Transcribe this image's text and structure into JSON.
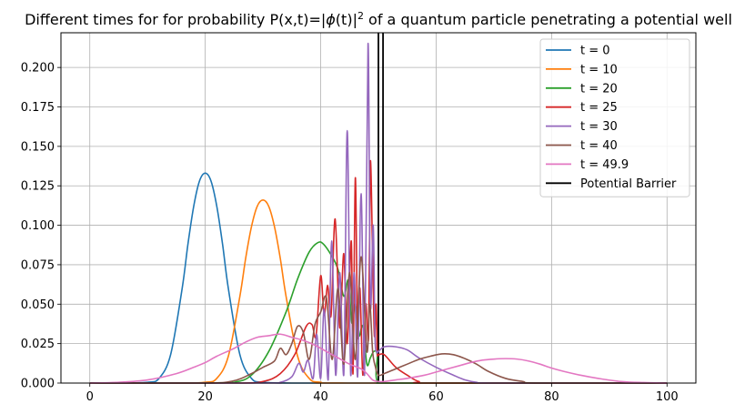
{
  "chart_data": {
    "type": "line",
    "title": {
      "prefix": "Different times for for probability P(x,t)=|",
      "phi": "ϕ",
      "arg": "(t)",
      "close": "|",
      "sup": "2",
      "suffix": " of a quantum particle penetrating a potential well"
    },
    "xlabel": "",
    "ylabel": "",
    "xlim": [
      -5,
      105
    ],
    "ylim": [
      0,
      0.222
    ],
    "x_ticks": [
      0,
      20,
      40,
      60,
      80,
      100
    ],
    "y_ticks": [
      0.0,
      0.025,
      0.05,
      0.075,
      0.1,
      0.125,
      0.15,
      0.175,
      0.2
    ],
    "x_tick_labels": [
      "0",
      "20",
      "40",
      "60",
      "80",
      "100"
    ],
    "y_tick_labels": [
      "0.000",
      "0.025",
      "0.050",
      "0.075",
      "0.100",
      "0.125",
      "0.150",
      "0.175",
      "0.200"
    ],
    "grid": true,
    "legend_position": "top-right",
    "barrier": {
      "name": "Potential Barrier",
      "x": [
        50,
        50.8
      ],
      "color": "#000000"
    },
    "series": [
      {
        "name": "t = 0",
        "color": "#1f77b4",
        "x": [
          0,
          5,
          10,
          12,
          14,
          16,
          17,
          18,
          19,
          20,
          21,
          22,
          23,
          24,
          26,
          28,
          30,
          35,
          40,
          100
        ],
        "y": [
          0,
          0,
          0.0005,
          0.003,
          0.018,
          0.06,
          0.088,
          0.112,
          0.128,
          0.133,
          0.128,
          0.112,
          0.088,
          0.06,
          0.018,
          0.003,
          0.0005,
          0,
          0,
          0
        ]
      },
      {
        "name": "t = 10",
        "color": "#ff7f0e",
        "x": [
          0,
          15,
          20,
          22,
          24,
          26,
          27,
          28,
          29,
          30,
          31,
          32,
          33,
          34,
          36,
          38,
          40,
          45,
          100
        ],
        "y": [
          0,
          0,
          0.0005,
          0.003,
          0.017,
          0.055,
          0.079,
          0.099,
          0.112,
          0.116,
          0.112,
          0.099,
          0.079,
          0.055,
          0.017,
          0.003,
          0.0005,
          0,
          0
        ]
      },
      {
        "name": "t = 20",
        "color": "#2ca02c",
        "x": [
          0,
          20,
          25,
          28,
          31,
          34,
          36,
          38,
          39.5,
          40.5,
          42,
          43,
          44,
          44.8,
          45.4,
          46,
          46.6,
          47.3,
          48,
          48.6,
          49.2,
          49.8,
          50,
          55,
          100
        ],
        "y": [
          0,
          0,
          0.0005,
          0.005,
          0.02,
          0.045,
          0.066,
          0.083,
          0.089,
          0.088,
          0.08,
          0.072,
          0.055,
          0.065,
          0.038,
          0.05,
          0.03,
          0.036,
          0.012,
          0.016,
          0.02,
          0.018,
          0,
          0,
          0
        ]
      },
      {
        "name": "t = 25",
        "color": "#d62728",
        "x": [
          0,
          25,
          30,
          33,
          35.5,
          37.5,
          38.5,
          39.2,
          40,
          40.6,
          41.2,
          41.8,
          42.5,
          43.3,
          44,
          44.6,
          45.3,
          45.6,
          46,
          46.4,
          46.8,
          47.3,
          47.8,
          48.3,
          48.6,
          49,
          49.3,
          49.6,
          49.8,
          50,
          51,
          53,
          55,
          57,
          60,
          100
        ],
        "y": [
          0,
          0,
          0.001,
          0.006,
          0.018,
          0.036,
          0.037,
          0.03,
          0.068,
          0.043,
          0.062,
          0.043,
          0.104,
          0.035,
          0.082,
          0.025,
          0.09,
          0.006,
          0.13,
          0.03,
          0.06,
          0.005,
          0.05,
          0.03,
          0.14,
          0.08,
          0.03,
          0.05,
          0.02,
          0.018,
          0.018,
          0.01,
          0.005,
          0.001,
          0,
          0
        ]
      },
      {
        "name": "t = 30",
        "color": "#9467bd",
        "x": [
          0,
          30,
          33,
          35,
          36.2,
          37,
          37.8,
          38.7,
          39.3,
          40,
          40.6,
          41.3,
          41.9,
          42.6,
          43.3,
          44,
          44.6,
          45.2,
          45.8,
          46.4,
          47,
          47.6,
          48.2,
          48.6,
          49.1,
          49.4,
          49.7,
          50,
          51,
          53,
          55,
          57,
          60,
          63,
          65,
          67,
          70,
          100
        ],
        "y": [
          0,
          0,
          0.0005,
          0.004,
          0.0125,
          0.007,
          0.0145,
          0.003,
          0.031,
          0.003,
          0.047,
          0.002,
          0.09,
          0.005,
          0.07,
          0.005,
          0.16,
          0.005,
          0.07,
          0.004,
          0.12,
          0.005,
          0.215,
          0.05,
          0.1,
          0.03,
          0.02,
          0.02,
          0.023,
          0.023,
          0.021,
          0.016,
          0.01,
          0.005,
          0.002,
          0.0005,
          0,
          0
        ]
      },
      {
        "name": "t = 40",
        "color": "#8c564b",
        "x": [
          0,
          20,
          25,
          28,
          30,
          32,
          33,
          34,
          35,
          36,
          37,
          38,
          39,
          40,
          41,
          42,
          43,
          44,
          45,
          46,
          47,
          48,
          48.5,
          49,
          49.5,
          50,
          51,
          53,
          55,
          57,
          59,
          61,
          63,
          65,
          67,
          69,
          72,
          75,
          78,
          100
        ],
        "y": [
          0,
          0,
          0.0015,
          0.006,
          0.01,
          0.014,
          0.022,
          0.018,
          0.025,
          0.036,
          0.032,
          0.015,
          0.037,
          0.045,
          0.054,
          0.015,
          0.06,
          0.012,
          0.07,
          0.015,
          0.08,
          0.02,
          0.05,
          0.02,
          0.01,
          0.005,
          0.006,
          0.009,
          0.012,
          0.015,
          0.017,
          0.0185,
          0.018,
          0.0155,
          0.012,
          0.0075,
          0.003,
          0.001,
          0,
          0
        ]
      },
      {
        "name": "t = 49.9",
        "color": "#e377c2",
        "x": [
          0,
          5,
          10,
          15,
          18,
          20,
          22,
          25,
          27,
          29,
          31,
          33,
          35,
          37,
          39,
          41,
          43,
          45,
          47,
          48,
          49,
          50,
          51,
          53,
          55,
          58,
          60,
          62,
          64,
          66,
          68,
          70,
          72,
          74,
          76,
          78,
          80,
          82,
          85,
          88,
          92,
          96,
          100
        ],
        "y": [
          0,
          0.0005,
          0.002,
          0.006,
          0.01,
          0.013,
          0.017,
          0.022,
          0.026,
          0.029,
          0.03,
          0.031,
          0.029,
          0.027,
          0.024,
          0.02,
          0.016,
          0.012,
          0.009,
          0.006,
          0.002,
          0.001,
          0.001,
          0.002,
          0.003,
          0.005,
          0.007,
          0.009,
          0.011,
          0.013,
          0.0145,
          0.0152,
          0.0155,
          0.0152,
          0.014,
          0.012,
          0.0095,
          0.0075,
          0.005,
          0.003,
          0.001,
          0.0003,
          0
        ]
      }
    ]
  }
}
